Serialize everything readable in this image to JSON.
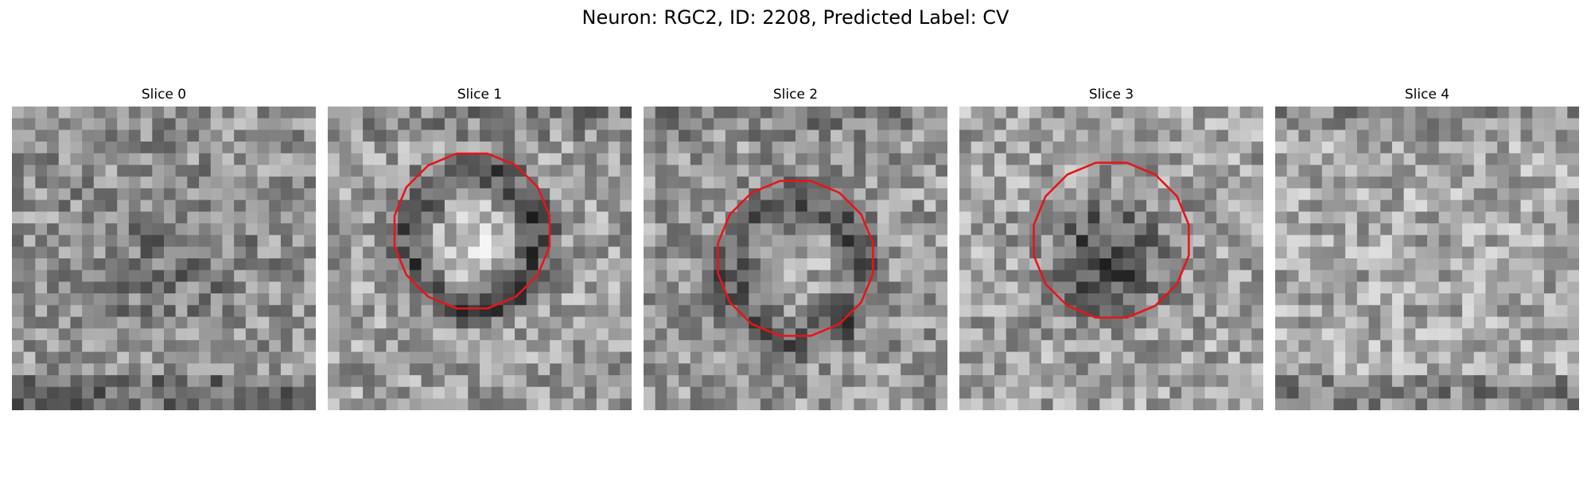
{
  "figure": {
    "title": "Neuron: RGC2, ID: 2208, Predicted Label: CV"
  },
  "panels": [
    {
      "title": "Slice 0",
      "has_contour": false
    },
    {
      "title": "Slice 1",
      "has_contour": true
    },
    {
      "title": "Slice 2",
      "has_contour": true
    },
    {
      "title": "Slice 3",
      "has_contour": true
    },
    {
      "title": "Slice 4",
      "has_contour": false
    }
  ],
  "colors": {
    "contour": "#e8141b",
    "background": "#ffffff",
    "colormap": "gray"
  }
}
